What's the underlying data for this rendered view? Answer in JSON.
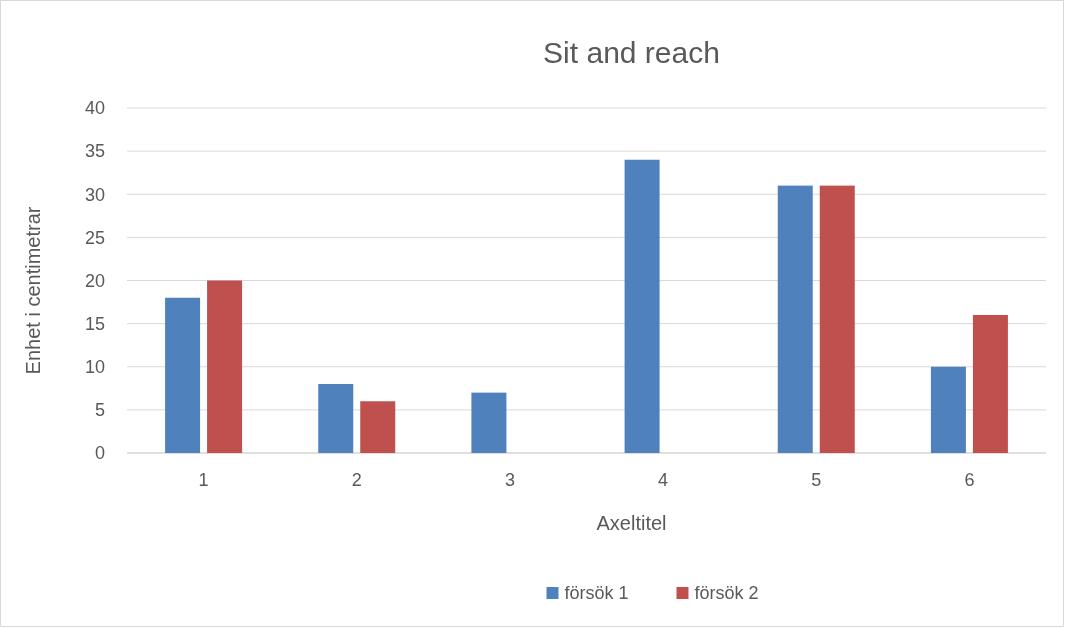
{
  "chart_data": {
    "type": "bar",
    "title": "Sit and reach",
    "xlabel": "Axeltitel",
    "ylabel": "Enhet i centimetrar",
    "categories": [
      "1",
      "2",
      "3",
      "4",
      "5",
      "6"
    ],
    "series": [
      {
        "name": "försök 1",
        "color": "#4f81bd",
        "values": [
          18,
          8,
          7,
          34,
          31,
          10
        ]
      },
      {
        "name": "försök 2",
        "color": "#c0504d",
        "values": [
          20,
          6,
          null,
          null,
          31,
          16
        ]
      }
    ],
    "ylim": [
      0,
      40
    ],
    "yticks": [
      0,
      5,
      10,
      15,
      20,
      25,
      30,
      35,
      40
    ],
    "grid": "y",
    "legend": "bottom"
  }
}
